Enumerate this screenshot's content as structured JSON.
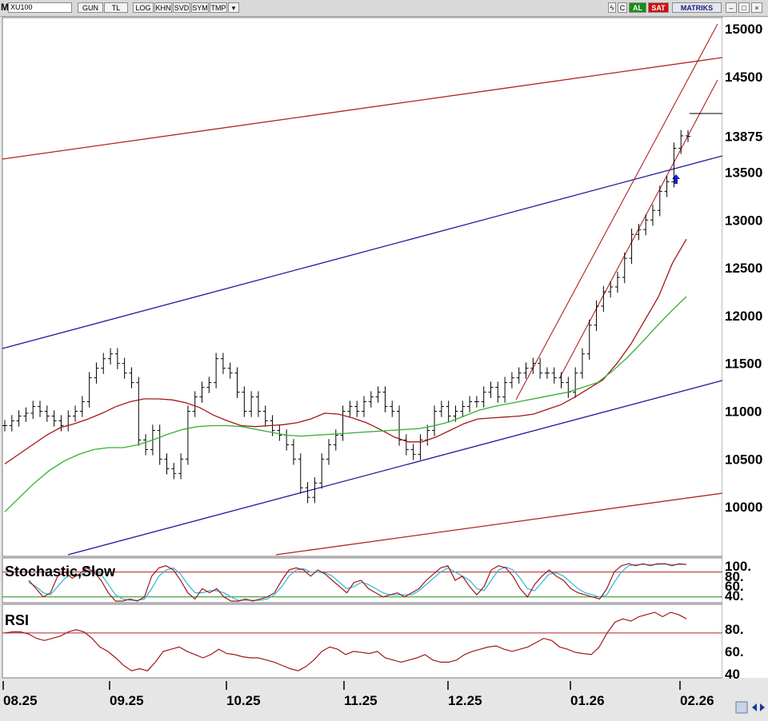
{
  "toolbar": {
    "m_label": "M",
    "symbol": "XU100",
    "buttons": [
      "GUN",
      "TL",
      "LOG",
      "KHN",
      "SVD",
      "SYM",
      "TMP"
    ],
    "right_buttons": [
      "ϟ",
      "C",
      "AL",
      "SAT"
    ],
    "brand": "MATRIKS",
    "window_buttons": [
      "–",
      "□",
      "×"
    ],
    "colors": {
      "al": "#1a8c1a",
      "sat": "#cc1111"
    }
  },
  "chart_data": {
    "type": "line",
    "price_panel": {
      "y_axis_labels": [
        "15000",
        "14500",
        "13875",
        "13500",
        "13000",
        "12500",
        "12000",
        "11500",
        "11000",
        "10500",
        "10000"
      ],
      "ylim": [
        9500,
        15100
      ],
      "last_value_label": "13875",
      "price_bars_close": [
        10850,
        10900,
        10950,
        10980,
        11050,
        11000,
        10950,
        10900,
        10850,
        10950,
        11000,
        11100,
        11350,
        11450,
        11550,
        11600,
        11500,
        11400,
        11300,
        10700,
        10600,
        10800,
        10500,
        10400,
        10350,
        10500,
        11000,
        11150,
        11250,
        11300,
        11550,
        11450,
        11400,
        11200,
        11000,
        11150,
        11000,
        10900,
        10800,
        10750,
        10650,
        10500,
        10200,
        10100,
        10250,
        10500,
        10650,
        10750,
        11000,
        11050,
        11000,
        11100,
        11150,
        11200,
        11050,
        11000,
        10700,
        10600,
        10550,
        10700,
        10800,
        11000,
        11050,
        10950,
        11000,
        11050,
        11100,
        11100,
        11200,
        11250,
        11150,
        11300,
        11350,
        11400,
        11450,
        11500,
        11400,
        11400,
        11350,
        11300,
        11200,
        11400,
        11600,
        11900,
        12100,
        12250,
        12300,
        12400,
        12600,
        12850,
        12900,
        13000,
        13100,
        13300,
        13400,
        13750,
        13880,
        13875
      ],
      "sma_red": [
        10450,
        10550,
        10650,
        10750,
        10830,
        10870,
        10920,
        10980,
        11050,
        11100,
        11130,
        11130,
        11120,
        11090,
        11040,
        10960,
        10900,
        10850,
        10840,
        10850,
        10860,
        10880,
        10920,
        10980,
        10970,
        10930,
        10880,
        10810,
        10730,
        10680,
        10680,
        10730,
        10800,
        10870,
        10920,
        10930,
        10940,
        10950,
        10970,
        11020,
        11070,
        11150,
        11240,
        11330,
        11500,
        11700,
        11950,
        12200,
        12550,
        12800
      ],
      "sma_green": [
        9950,
        10100,
        10250,
        10380,
        10480,
        10550,
        10600,
        10620,
        10620,
        10650,
        10700,
        10760,
        10810,
        10840,
        10850,
        10850,
        10840,
        10810,
        10780,
        10750,
        10740,
        10750,
        10760,
        10770,
        10780,
        10790,
        10800,
        10810,
        10820,
        10850,
        10890,
        10950,
        11010,
        11050,
        11080,
        11110,
        11140,
        11170,
        11200,
        11250,
        11300,
        11420,
        11560,
        11720,
        11890,
        12050,
        12200
      ]
    },
    "stochastic_panel": {
      "title": "Stochastic,Slow",
      "y_axis_labels": [
        "100.",
        "80.",
        "60.",
        "40."
      ],
      "ylim": [
        10,
        110
      ],
      "k": [
        60,
        40,
        20,
        30,
        70,
        80,
        65,
        75,
        90,
        80,
        60,
        30,
        10,
        10,
        15,
        10,
        20,
        70,
        90,
        95,
        85,
        60,
        30,
        15,
        40,
        30,
        40,
        20,
        10,
        10,
        15,
        10,
        15,
        20,
        30,
        60,
        85,
        90,
        85,
        70,
        85,
        75,
        60,
        45,
        30,
        55,
        60,
        40,
        30,
        20,
        25,
        30,
        20,
        30,
        40,
        60,
        75,
        90,
        95,
        60,
        70,
        45,
        25,
        45,
        85,
        95,
        90,
        70,
        40,
        20,
        50,
        70,
        85,
        70,
        60,
        40,
        30,
        25,
        20,
        15,
        40,
        80,
        95,
        100,
        95,
        100,
        95,
        100,
        100,
        95,
        100,
        98
      ],
      "d": [
        55,
        45,
        30,
        25,
        45,
        65,
        75,
        70,
        80,
        85,
        75,
        50,
        25,
        15,
        12,
        12,
        15,
        40,
        70,
        85,
        90,
        75,
        50,
        30,
        30,
        35,
        35,
        30,
        20,
        12,
        12,
        12,
        12,
        15,
        25,
        45,
        70,
        85,
        88,
        80,
        80,
        78,
        70,
        55,
        40,
        45,
        55,
        50,
        40,
        30,
        25,
        25,
        25,
        25,
        35,
        50,
        65,
        80,
        90,
        80,
        70,
        60,
        40,
        35,
        60,
        85,
        92,
        85,
        65,
        40,
        35,
        55,
        75,
        78,
        70,
        55,
        40,
        30,
        25,
        20,
        25,
        55,
        80,
        95,
        98,
        98,
        98,
        98,
        99,
        98,
        98,
        98
      ],
      "levels": [
        80,
        20
      ]
    },
    "rsi_panel": {
      "title": "RSI",
      "y_axis_labels": [
        "80.",
        "60.",
        "40"
      ],
      "ylim": [
        35,
        100
      ],
      "level": 75,
      "values": [
        75,
        76,
        76,
        74,
        70,
        68,
        70,
        72,
        76,
        78,
        76,
        70,
        62,
        58,
        52,
        45,
        40,
        42,
        40,
        48,
        58,
        60,
        62,
        58,
        55,
        52,
        55,
        60,
        56,
        55,
        53,
        52,
        52,
        50,
        48,
        45,
        42,
        40,
        44,
        50,
        58,
        62,
        60,
        55,
        58,
        57,
        56,
        58,
        52,
        50,
        48,
        50,
        52,
        55,
        50,
        48,
        48,
        50,
        55,
        58,
        60,
        62,
        63,
        60,
        58,
        60,
        62,
        66,
        70,
        68,
        62,
        60,
        57,
        56,
        55,
        62,
        75,
        85,
        88,
        86,
        90,
        92,
        94,
        90,
        94,
        92,
        88
      ]
    },
    "x_axis_labels": [
      "08.25",
      "09.25",
      "10.25",
      "11.25",
      "12.25",
      "01.26",
      "02.26"
    ],
    "colors": {
      "price": "#000000",
      "sma_red": "#a01818",
      "sma_green": "#34b034",
      "trend_red": "#b22222",
      "trend_blue": "#1a1a9e",
      "stoch_k": "#a01818",
      "stoch_d": "#2ab8d8",
      "rsi": "#a01818"
    },
    "grid": false
  }
}
